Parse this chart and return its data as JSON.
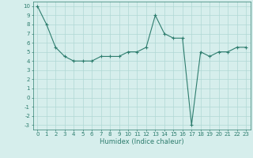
{
  "x": [
    0,
    1,
    2,
    3,
    4,
    5,
    6,
    7,
    8,
    9,
    10,
    11,
    12,
    13,
    14,
    15,
    16,
    17,
    18,
    19,
    20,
    21,
    22,
    23
  ],
  "y": [
    10,
    8,
    5.5,
    4.5,
    4.0,
    4.0,
    4.0,
    4.5,
    4.5,
    4.5,
    5.0,
    5.0,
    5.5,
    9.0,
    7.0,
    6.5,
    6.5,
    -3.0,
    5.0,
    4.5,
    5.0,
    5.0,
    5.5,
    5.5
  ],
  "xlabel": "Humidex (Indice chaleur)",
  "ylim": [
    -3.5,
    10.5
  ],
  "xlim": [
    -0.5,
    23.5
  ],
  "line_color": "#2e7d6e",
  "marker": "+",
  "bg_color": "#d6eeec",
  "grid_color": "#b0d8d4",
  "tick_color": "#2e7d6e",
  "label_color": "#2e7d6e",
  "yticks": [
    10,
    9,
    8,
    7,
    6,
    5,
    4,
    3,
    2,
    1,
    0,
    -1,
    -2,
    -3
  ],
  "xticks": [
    0,
    1,
    2,
    3,
    4,
    5,
    6,
    7,
    8,
    9,
    10,
    11,
    12,
    13,
    14,
    15,
    16,
    17,
    18,
    19,
    20,
    21,
    22,
    23
  ],
  "tick_fontsize": 5.0,
  "xlabel_fontsize": 6.0
}
